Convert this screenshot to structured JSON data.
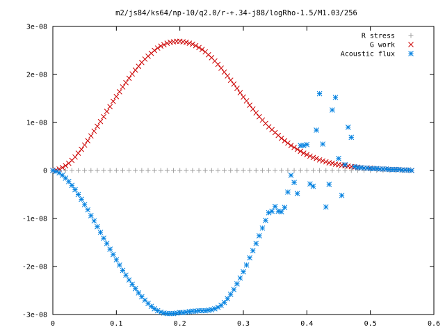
{
  "chart_data": {
    "type": "scatter",
    "title": "m2/js84/ks64/np-10/q2.0/r-+.34-j88/logRho-1.5/M1.03/256",
    "xlabel": "",
    "ylabel": "",
    "xlim": [
      0,
      0.6
    ],
    "ylim": [
      -3e-08,
      3e-08
    ],
    "grid": false,
    "legend_position": "top-right",
    "x_ticks": [
      {
        "value": 0,
        "label": "0"
      },
      {
        "value": 0.1,
        "label": "0.1"
      },
      {
        "value": 0.2,
        "label": "0.2"
      },
      {
        "value": 0.3,
        "label": "0.3"
      },
      {
        "value": 0.4,
        "label": "0.4"
      },
      {
        "value": 0.5,
        "label": "0.5"
      },
      {
        "value": 0.6,
        "label": "0.6"
      }
    ],
    "y_ticks": [
      {
        "value": 3e-08,
        "label": "3e-08"
      },
      {
        "value": 2e-08,
        "label": "2e-08"
      },
      {
        "value": 1e-08,
        "label": "1e-08"
      },
      {
        "value": 0,
        "label": "0"
      },
      {
        "value": -1e-08,
        "label": "-1e-08"
      },
      {
        "value": -2e-08,
        "label": "-2e-08"
      },
      {
        "value": -3e-08,
        "label": "-3e-08"
      }
    ],
    "series": [
      {
        "name": "R stress",
        "marker": "plus",
        "color": "#a0a0a0",
        "x": [
          0.0,
          0.01,
          0.02,
          0.03,
          0.04,
          0.05,
          0.06,
          0.07,
          0.08,
          0.09,
          0.1,
          0.11,
          0.12,
          0.13,
          0.14,
          0.15,
          0.16,
          0.17,
          0.18,
          0.19,
          0.2,
          0.21,
          0.22,
          0.23,
          0.24,
          0.25,
          0.26,
          0.27,
          0.28,
          0.29,
          0.3,
          0.31,
          0.32,
          0.33,
          0.34,
          0.35,
          0.36,
          0.37,
          0.38,
          0.39,
          0.4,
          0.41,
          0.42,
          0.43,
          0.44,
          0.45,
          0.46,
          0.47,
          0.48,
          0.49,
          0.5,
          0.51,
          0.52,
          0.53,
          0.54,
          0.55,
          0.56
        ],
        "y": [
          0,
          0,
          0,
          0,
          0,
          0,
          0,
          0,
          0,
          0,
          0,
          0,
          0,
          0,
          0,
          0,
          0,
          0,
          0,
          0,
          0,
          0,
          0,
          0,
          0,
          0,
          0,
          0,
          0,
          0,
          0,
          0,
          0,
          0,
          0,
          0,
          0,
          0,
          0,
          0,
          0,
          0,
          0,
          0,
          0,
          0,
          0,
          0,
          0,
          0,
          0,
          0,
          0,
          0,
          0,
          0,
          0
        ]
      },
      {
        "name": "G work",
        "marker": "cross",
        "color": "#cc0000",
        "x": [
          0.0,
          0.005,
          0.01,
          0.015,
          0.02,
          0.025,
          0.03,
          0.035,
          0.04,
          0.045,
          0.05,
          0.055,
          0.06,
          0.065,
          0.07,
          0.075,
          0.08,
          0.085,
          0.09,
          0.095,
          0.1,
          0.105,
          0.11,
          0.115,
          0.12,
          0.125,
          0.13,
          0.135,
          0.14,
          0.145,
          0.15,
          0.155,
          0.16,
          0.165,
          0.17,
          0.175,
          0.18,
          0.185,
          0.19,
          0.195,
          0.2,
          0.205,
          0.21,
          0.215,
          0.22,
          0.225,
          0.23,
          0.235,
          0.24,
          0.245,
          0.25,
          0.255,
          0.26,
          0.265,
          0.27,
          0.275,
          0.28,
          0.285,
          0.29,
          0.295,
          0.3,
          0.305,
          0.31,
          0.315,
          0.32,
          0.325,
          0.33,
          0.335,
          0.34,
          0.345,
          0.35,
          0.355,
          0.36,
          0.365,
          0.37,
          0.375,
          0.38,
          0.385,
          0.39,
          0.395,
          0.4,
          0.405,
          0.41,
          0.415,
          0.42,
          0.425,
          0.43,
          0.435,
          0.44,
          0.445,
          0.45,
          0.455,
          0.46,
          0.465,
          0.47,
          0.475,
          0.48,
          0.485,
          0.49,
          0.495,
          0.5,
          0.505,
          0.51,
          0.515,
          0.52,
          0.525,
          0.53,
          0.535,
          0.54,
          0.545,
          0.55,
          0.555,
          0.56,
          0.565
        ],
        "y": [
          0.0,
          1e-10,
          3e-10,
          6e-10,
          1e-09,
          1.5e-09,
          2.1e-09,
          2.8e-09,
          3.6e-09,
          4.4e-09,
          5.3e-09,
          6.2e-09,
          7.2e-09,
          8.2e-09,
          9.2e-09,
          1.02e-08,
          1.12e-08,
          1.23e-08,
          1.33e-08,
          1.44e-08,
          1.54e-08,
          1.64e-08,
          1.74e-08,
          1.83e-08,
          1.92e-08,
          2.01e-08,
          2.09e-08,
          2.17e-08,
          2.25e-08,
          2.32e-08,
          2.38e-08,
          2.44e-08,
          2.5e-08,
          2.55e-08,
          2.59e-08,
          2.62e-08,
          2.65e-08,
          2.67e-08,
          2.68e-08,
          2.69e-08,
          2.69e-08,
          2.68e-08,
          2.67e-08,
          2.65e-08,
          2.63e-08,
          2.6e-08,
          2.56e-08,
          2.52e-08,
          2.47e-08,
          2.41e-08,
          2.35e-08,
          2.28e-08,
          2.21e-08,
          2.13e-08,
          2.05e-08,
          1.97e-08,
          1.88e-08,
          1.8e-08,
          1.71e-08,
          1.62e-08,
          1.53e-08,
          1.45e-08,
          1.36e-08,
          1.28e-08,
          1.2e-08,
          1.12e-08,
          1.05e-08,
          9.8e-09,
          9.1e-09,
          8.5e-09,
          7.9e-09,
          7.3e-09,
          6.7e-09,
          6.2e-09,
          5.7e-09,
          5.2e-09,
          4.8e-09,
          4.4e-09,
          4e-09,
          3.6e-09,
          3.3e-09,
          3e-09,
          2.7e-09,
          2.5e-09,
          2.2e-09,
          2e-09,
          1.8e-09,
          1.6e-09,
          1.5e-09,
          1.3e-09,
          1.2e-09,
          1.1e-09,
          1e-09,
          9e-10,
          8e-10,
          7e-10,
          7e-10,
          6e-10,
          5e-10,
          5e-10,
          5e-10,
          4e-10,
          4e-10,
          3e-10,
          3e-10,
          3e-10,
          2e-10,
          2e-10,
          2e-10,
          2e-10,
          1e-10,
          1e-10,
          1e-10,
          0.0
        ]
      },
      {
        "name": "Acoustic flux",
        "marker": "star",
        "color": "#0080e0",
        "x": [
          0.0,
          0.005,
          0.01,
          0.015,
          0.02,
          0.025,
          0.03,
          0.035,
          0.04,
          0.045,
          0.05,
          0.055,
          0.06,
          0.065,
          0.07,
          0.075,
          0.08,
          0.085,
          0.09,
          0.095,
          0.1,
          0.105,
          0.11,
          0.115,
          0.12,
          0.125,
          0.13,
          0.135,
          0.14,
          0.145,
          0.15,
          0.155,
          0.16,
          0.165,
          0.17,
          0.175,
          0.18,
          0.185,
          0.19,
          0.195,
          0.2,
          0.205,
          0.21,
          0.215,
          0.22,
          0.225,
          0.23,
          0.235,
          0.24,
          0.245,
          0.25,
          0.255,
          0.26,
          0.265,
          0.27,
          0.275,
          0.28,
          0.285,
          0.29,
          0.295,
          0.3,
          0.305,
          0.31,
          0.315,
          0.32,
          0.325,
          0.33,
          0.335,
          0.34,
          0.345,
          0.35,
          0.355,
          0.36,
          0.365,
          0.37,
          0.375,
          0.38,
          0.385,
          0.39,
          0.395,
          0.4,
          0.405,
          0.41,
          0.415,
          0.42,
          0.425,
          0.43,
          0.435,
          0.44,
          0.445,
          0.45,
          0.455,
          0.46,
          0.465,
          0.47,
          0.475,
          0.48,
          0.485,
          0.49,
          0.495,
          0.5,
          0.505,
          0.51,
          0.515,
          0.52,
          0.525,
          0.53,
          0.535,
          0.54,
          0.545,
          0.55,
          0.555,
          0.56,
          0.565
        ],
        "y": [
          0.0,
          -2e-10,
          -5e-10,
          -1e-09,
          -1.6e-09,
          -2.3e-09,
          -3.1e-09,
          -4e-09,
          -5e-09,
          -6e-09,
          -7.1e-09,
          -8.2e-09,
          -9.4e-09,
          -1.05e-08,
          -1.17e-08,
          -1.29e-08,
          -1.41e-08,
          -1.52e-08,
          -1.64e-08,
          -1.75e-08,
          -1.86e-08,
          -1.97e-08,
          -2.08e-08,
          -2.18e-08,
          -2.28e-08,
          -2.37e-08,
          -2.46e-08,
          -2.55e-08,
          -2.63e-08,
          -2.7e-08,
          -2.77e-08,
          -2.83e-08,
          -2.88e-08,
          -2.92e-08,
          -2.95e-08,
          -2.97e-08,
          -2.98e-08,
          -2.98e-08,
          -2.98e-08,
          -2.97e-08,
          -2.96e-08,
          -2.96e-08,
          -2.95e-08,
          -2.94e-08,
          -2.93e-08,
          -2.93e-08,
          -2.92e-08,
          -2.92e-08,
          -2.92e-08,
          -2.91e-08,
          -2.9e-08,
          -2.88e-08,
          -2.85e-08,
          -2.81e-08,
          -2.75e-08,
          -2.67e-08,
          -2.58e-08,
          -2.48e-08,
          -2.36e-08,
          -2.24e-08,
          -2.11e-08,
          -1.97e-08,
          -1.82e-08,
          -1.67e-08,
          -1.52e-08,
          -1.36e-08,
          -1.2e-08,
          -1.04e-08,
          -8.8e-09,
          -8.5e-09,
          -7.5e-09,
          -8.5e-09,
          -8.6e-09,
          -7.7e-09,
          -4.5e-09,
          -1e-09,
          -2.5e-09,
          -4.8e-09,
          5.2e-09,
          5.2e-09,
          5.4e-09,
          -2.8e-09,
          -3.3e-09,
          8.4e-09,
          1.6e-08,
          5.5e-09,
          -7.6e-09,
          -2.9e-09,
          1.26e-08,
          1.52e-08,
          2.5e-09,
          -5.2e-09,
          1.2e-09,
          9e-09,
          6.9e-09,
          8e-10,
          6e-10,
          6e-10,
          5e-10,
          5e-10,
          4e-10,
          4e-10,
          4e-10,
          3e-10,
          3e-10,
          3e-10,
          2e-10,
          2e-10,
          2e-10,
          2e-10,
          1e-10,
          1e-10,
          1e-10,
          0.0
        ]
      }
    ]
  }
}
